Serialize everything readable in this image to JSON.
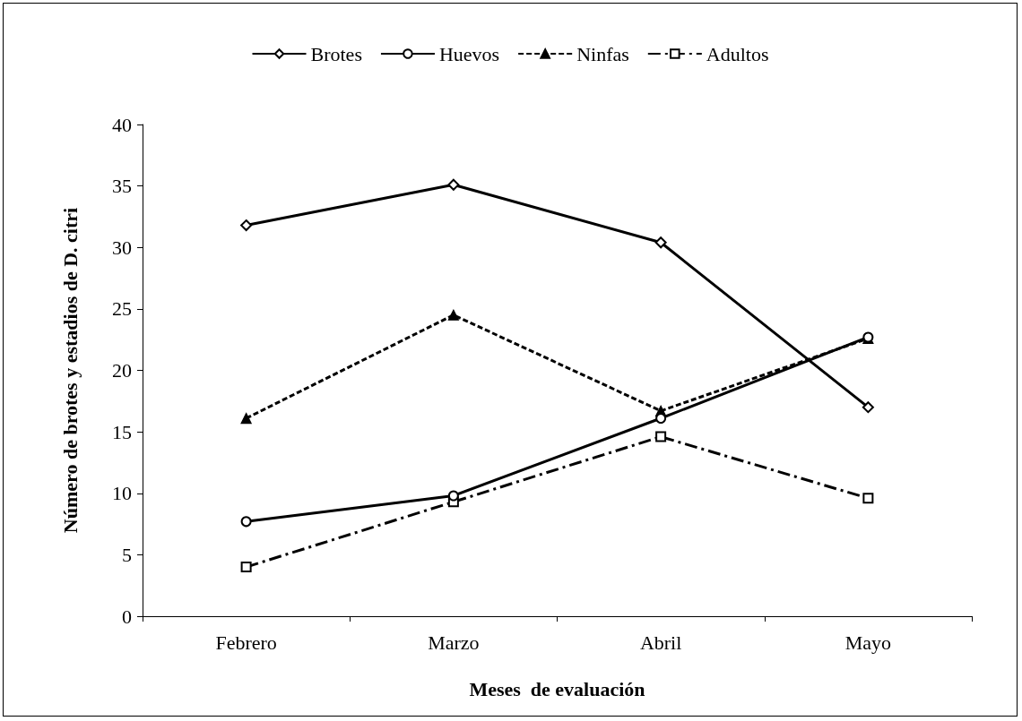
{
  "chart_data": {
    "type": "line",
    "xlabel": "Meses  de evaluación",
    "ylabel": "Número de brotes y estadios de D. citri",
    "categories": [
      "Febrero",
      "Marzo",
      "Abril",
      "Mayo"
    ],
    "series": [
      {
        "name": "Brotes",
        "color": "#000000",
        "marker": "diamond",
        "line_style": "solid",
        "values": [
          31.8,
          35.1,
          30.4,
          17.0
        ]
      },
      {
        "name": "Huevos",
        "color": "#000000",
        "marker": "circle",
        "line_style": "solid",
        "values": [
          7.7,
          9.8,
          16.1,
          22.7
        ]
      },
      {
        "name": "Ninfas",
        "color": "#000000",
        "marker": "triangle",
        "line_style": "dashed",
        "values": [
          16.1,
          24.5,
          16.7,
          22.6
        ]
      },
      {
        "name": "Adultos",
        "color": "#000000",
        "marker": "square",
        "line_style": "dashdot",
        "values": [
          4.0,
          9.3,
          14.6,
          9.6
        ]
      }
    ],
    "ylim": [
      0,
      40
    ],
    "yticks": [
      0,
      5,
      10,
      15,
      20,
      25,
      30,
      35,
      40
    ],
    "grid": false,
    "legend": "top"
  }
}
